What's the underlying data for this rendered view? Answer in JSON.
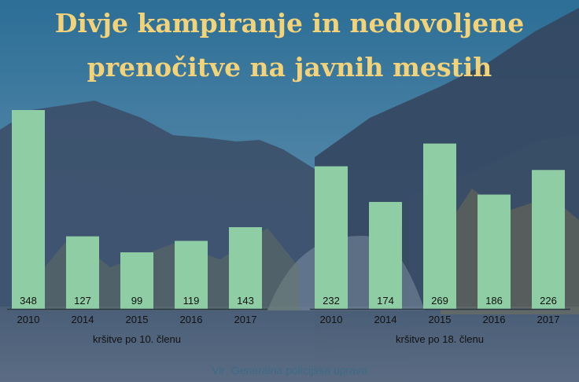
{
  "title_line1": "Divje kampiranje in nedovoljene",
  "title_line2": "prenočitve na javnih mestih",
  "source": "Vir: Generalna policijska uprava",
  "colors": {
    "bar": "#8fcea5",
    "title": "#f3d37a",
    "axis_text": "#111111",
    "baseline": "#2b3a44",
    "source_text": "#3d6a86"
  },
  "chart_data": [
    {
      "type": "bar",
      "categories": [
        "2010",
        "2014",
        "2015",
        "2016",
        "2017"
      ],
      "values": [
        348,
        127,
        99,
        119,
        143
      ],
      "xlabel": "kršitve po 10. členu",
      "ylabel": "",
      "ylim": [
        0,
        348
      ]
    },
    {
      "type": "bar",
      "categories": [
        "2010",
        "2014",
        "2015",
        "2016",
        "2017"
      ],
      "values": [
        232,
        174,
        269,
        186,
        226
      ],
      "xlabel": "kršitve po 18. členu",
      "ylabel": "",
      "ylim": [
        0,
        312
      ]
    }
  ]
}
